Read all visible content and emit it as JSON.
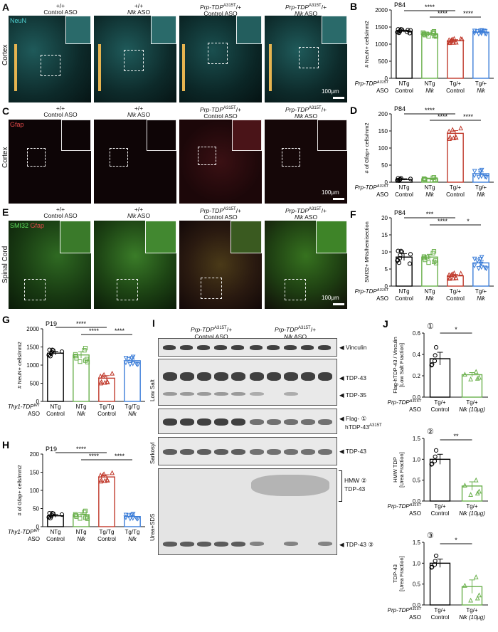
{
  "panels": {
    "A": {
      "letter": "A",
      "stain": "NeuN",
      "region": "Cortex",
      "scale": "100μm",
      "columns": [
        {
          "line1": "+/+",
          "line2": "Control ASO"
        },
        {
          "line1": "+/+",
          "line2": "Nlk ASO"
        },
        {
          "line1": "Prp-TDP",
          "sup": "A315T",
          "line1b": "/+",
          "line2": "Control ASO"
        },
        {
          "line1": "Prp-TDP",
          "sup": "A315T",
          "line1b": "/+",
          "line2": "Nlk ASO"
        }
      ]
    },
    "C": {
      "letter": "C",
      "stain": "Gfap",
      "region": "Cortex",
      "scale": "100μm",
      "columns": [
        {
          "line1": "+/+",
          "line2": "Control ASO"
        },
        {
          "line1": "+/+",
          "line2": "Nlk ASO"
        },
        {
          "line1": "Prp-TDP",
          "sup": "A315T",
          "line1b": "/+",
          "line2": "Control ASO"
        },
        {
          "line1": "Prp-TDP",
          "sup": "A315T",
          "line1b": "/+",
          "line2": "Nlk ASO"
        }
      ]
    },
    "E": {
      "letter": "E",
      "stain1": "SMI32",
      "stain2": "Gfap",
      "region": "Spinal Cord",
      "scale": "100μm",
      "columns": [
        {
          "line1": "+/+",
          "line2": "Control ASO"
        },
        {
          "line1": "+/+",
          "line2": "Nlk ASO"
        },
        {
          "line1": "Prp-TDP",
          "sup": "A315T",
          "line1b": "/+",
          "line2": "Control ASO"
        },
        {
          "line1": "Prp-TDP",
          "sup": "A315T",
          "line1b": "/+",
          "line2": "Nlk ASO"
        }
      ]
    },
    "I": {
      "letter": "I",
      "group1": "Prp-TDP",
      "group1_sup": "A315T",
      "group1_tail": "/+",
      "group1_sub": "Control ASO",
      "group2": "Prp-TDP",
      "group2_sup": "A315T",
      "group2_tail": "/+",
      "group2_sub": "Nlk ASO",
      "fractions": {
        "low_salt": "Low Salt",
        "sarkosyl": "Sarkosyl",
        "urea": "Urea+SDS"
      },
      "bands": {
        "vinculin": "◀ Vinculin",
        "tdp43": "◀ TDP-43",
        "tdp35": "◀ TDP-35",
        "flag1": "◀ Flag-",
        "flag2": "hTDP-43",
        "flag2_sup": "A315T",
        "tdp43_s": "◀ TDP-43",
        "hmw1": "HMW",
        "hmw2": "TDP-43",
        "tdp43_u": "◀ TDP-43",
        "c1": "①",
        "c2": "②",
        "c3": "③"
      }
    }
  },
  "chart_data": [
    {
      "panel": "B",
      "type": "bar",
      "timepoint": "P84",
      "genotype_label": "Prp-TDP",
      "genotype_sup": "A315T",
      "aso_label": "ASO",
      "categories": [
        "NTg",
        "NTg",
        "Tg/+",
        "Tg/+"
      ],
      "subcategories": [
        "Control",
        "Nlk",
        "Control",
        "Nlk"
      ],
      "values": [
        1380,
        1300,
        1100,
        1350
      ],
      "errors": [
        30,
        35,
        30,
        25
      ],
      "ylabel": "# NeuN+ cells/mm2",
      "ylim": [
        0,
        2000
      ],
      "yticks": [
        0,
        500,
        1000,
        1500,
        2000
      ],
      "colors": [
        "#000000",
        "#6ab04c",
        "#c0392b",
        "#3b7dd8"
      ],
      "markers": [
        "circle",
        "square",
        "triangle",
        "triangle-down"
      ],
      "significance": [
        {
          "from": 0,
          "to": 2,
          "text": "****"
        },
        {
          "from": 1,
          "to": 2,
          "text": "****"
        },
        {
          "from": 2,
          "to": 3,
          "text": "****"
        }
      ]
    },
    {
      "panel": "D",
      "type": "bar",
      "timepoint": "P84",
      "genotype_label": "Prp-TDP",
      "genotype_sup": "A315T",
      "aso_label": "ASO",
      "categories": [
        "NTg",
        "NTg",
        "Tg/+",
        "Tg/+"
      ],
      "subcategories": [
        "Control",
        "Nlk",
        "Control",
        "Nlk"
      ],
      "values": [
        8,
        10,
        143,
        25
      ],
      "errors": [
        2,
        2,
        8,
        5
      ],
      "ylabel": "# of Gfap+ cells/mm2",
      "ylim": [
        0,
        200
      ],
      "yticks": [
        0,
        50,
        100,
        150,
        200
      ],
      "colors": [
        "#000000",
        "#6ab04c",
        "#c0392b",
        "#3b7dd8"
      ],
      "markers": [
        "circle",
        "square",
        "triangle",
        "triangle-down"
      ],
      "significance": [
        {
          "from": 0,
          "to": 2,
          "text": "****"
        },
        {
          "from": 1,
          "to": 2,
          "text": "****"
        },
        {
          "from": 2,
          "to": 3,
          "text": "****"
        }
      ]
    },
    {
      "panel": "F",
      "type": "bar",
      "timepoint": "P84",
      "genotype_label": "Prp-TDP",
      "genotype_sup": "A315T",
      "aso_label": "ASO",
      "categories": [
        "NTg",
        "NTg",
        "Tg/+",
        "Tg/+"
      ],
      "subcategories": [
        "Control",
        "Nlk",
        "Control",
        "Nlk"
      ],
      "values": [
        8.5,
        8.5,
        3,
        6.8
      ],
      "errors": [
        1,
        0.8,
        0.4,
        0.8
      ],
      "ylabel": "SMI32+ MNs/hemisection",
      "ylim": [
        0,
        20
      ],
      "yticks": [
        0,
        5,
        10,
        15,
        20
      ],
      "colors": [
        "#000000",
        "#6ab04c",
        "#c0392b",
        "#3b7dd8"
      ],
      "markers": [
        "circle",
        "square",
        "triangle",
        "triangle-down"
      ],
      "significance": [
        {
          "from": 0,
          "to": 2,
          "text": "***"
        },
        {
          "from": 1,
          "to": 2,
          "text": "****"
        },
        {
          "from": 2,
          "to": 3,
          "text": "*"
        }
      ]
    },
    {
      "panel": "G",
      "type": "bar",
      "timepoint": "P19",
      "genotype_label": "Thy1-TDP",
      "genotype_sup": "WT",
      "aso_label": "ASO",
      "categories": [
        "NTg",
        "NTg",
        "Tg/Tg",
        "Tg/Tg"
      ],
      "subcategories": [
        "Control",
        "Nlk",
        "Control",
        "Nlk"
      ],
      "values": [
        1330,
        1280,
        640,
        1120
      ],
      "errors": [
        50,
        90,
        70,
        50
      ],
      "ylabel": "# NeuN+ cells/mm2",
      "ylim": [
        0,
        2000
      ],
      "yticks": [
        0,
        500,
        1000,
        1500,
        2000
      ],
      "colors": [
        "#000000",
        "#6ab04c",
        "#c0392b",
        "#3b7dd8"
      ],
      "markers": [
        "circle",
        "square",
        "triangle",
        "triangle-down"
      ],
      "significance": [
        {
          "from": 0,
          "to": 2,
          "text": "****"
        },
        {
          "from": 1,
          "to": 2,
          "text": "****"
        },
        {
          "from": 2,
          "to": 3,
          "text": "****"
        }
      ]
    },
    {
      "panel": "H",
      "type": "bar",
      "timepoint": "P19",
      "genotype_label": "Thy1-TDP",
      "genotype_sup": "WT",
      "aso_label": "ASO",
      "categories": [
        "NTg",
        "NTg",
        "Tg/Tg",
        "Tg/Tg"
      ],
      "subcategories": [
        "Control",
        "Nlk",
        "Control",
        "Nlk"
      ],
      "values": [
        30,
        33,
        137,
        28
      ],
      "errors": [
        4,
        5,
        6,
        3
      ],
      "ylabel": "# of Gfap+ cells/mm2",
      "ylim": [
        0,
        200
      ],
      "yticks": [
        0,
        50,
        100,
        150,
        200
      ],
      "colors": [
        "#000000",
        "#6ab04c",
        "#c0392b",
        "#3b7dd8"
      ],
      "markers": [
        "circle",
        "square",
        "triangle",
        "triangle-down"
      ],
      "significance": [
        {
          "from": 0,
          "to": 2,
          "text": "****"
        },
        {
          "from": 1,
          "to": 2,
          "text": "****"
        },
        {
          "from": 2,
          "to": 3,
          "text": "****"
        }
      ]
    },
    {
      "panel": "J1",
      "type": "bar",
      "circle_label": "①",
      "genotype_label": "Prp-TDP",
      "genotype_sup": "A315T",
      "aso_label": "ASO",
      "categories": [
        "Tg/+",
        "Tg/+"
      ],
      "subcategories": [
        "Control",
        "Nlk (10μg)"
      ],
      "values": [
        0.36,
        0.21
      ],
      "errors": [
        0.06,
        0.02
      ],
      "ylabel": "Flag-hTDP-43 / Vinculin",
      "ylabel2": "[Low Salt Fraction]",
      "ylim": [
        0,
        0.6
      ],
      "yticks": [
        0.0,
        0.2,
        0.4,
        0.6
      ],
      "colors": [
        "#000000",
        "#6ab04c"
      ],
      "markers": [
        "circle",
        "triangle"
      ],
      "significance": [
        {
          "from": 0,
          "to": 1,
          "text": "*"
        }
      ]
    },
    {
      "panel": "J2",
      "type": "bar",
      "circle_label": "②",
      "genotype_label": "Prp-TDP",
      "genotype_sup": "A315T",
      "aso_label": "ASO",
      "categories": [
        "Tg/+",
        "Tg/+"
      ],
      "subcategories": [
        "Control",
        "Nlk (10μg)"
      ],
      "values": [
        1.0,
        0.36
      ],
      "errors": [
        0.12,
        0.1
      ],
      "ylabel": "HMW TDP",
      "ylabel2": "[Urea Fraction]",
      "ylim": [
        0,
        1.5
      ],
      "yticks": [
        0.0,
        0.5,
        1.0,
        1.5
      ],
      "colors": [
        "#000000",
        "#6ab04c"
      ],
      "markers": [
        "circle",
        "triangle"
      ],
      "significance": [
        {
          "from": 0,
          "to": 1,
          "text": "**"
        }
      ]
    },
    {
      "panel": "J3",
      "type": "bar",
      "circle_label": "③",
      "genotype_label": "Prp-TDP",
      "genotype_sup": "A315T",
      "aso_label": "ASO",
      "categories": [
        "Tg/+",
        "Tg/+"
      ],
      "subcategories": [
        "Control",
        "Nlk (10μg)"
      ],
      "values": [
        1.0,
        0.44
      ],
      "errors": [
        0.1,
        0.16
      ],
      "ylabel": "TDP-43",
      "ylabel2": "[Urea Fraction]",
      "ylim": [
        0,
        1.5
      ],
      "yticks": [
        0.0,
        0.5,
        1.0,
        1.5
      ],
      "colors": [
        "#000000",
        "#6ab04c"
      ],
      "markers": [
        "circle",
        "triangle"
      ],
      "significance": [
        {
          "from": 0,
          "to": 1,
          "text": "*"
        }
      ]
    }
  ]
}
